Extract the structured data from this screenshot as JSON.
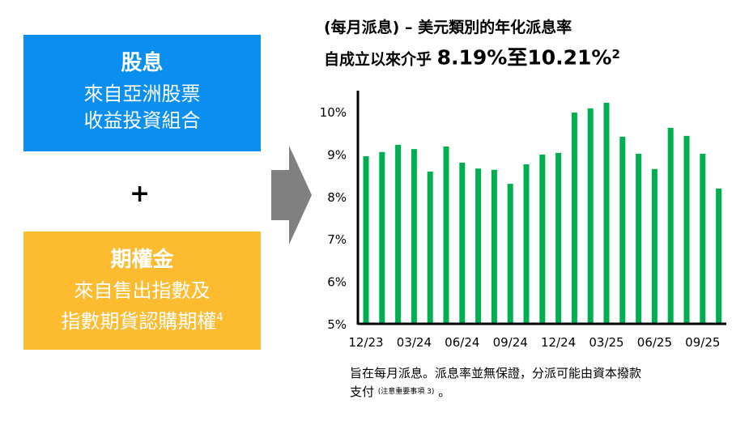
{
  "left": {
    "dividend_box": {
      "title": "股息",
      "subtitle_lines": [
        "來自亞洲股票",
        "收益投資組合"
      ],
      "color": "#0a8ff0"
    },
    "plus": "+",
    "premium_box": {
      "title": "期權金",
      "subtitle_lines": [
        "來自售出指數及",
        "指數期貨認購期權"
      ],
      "superscript": "4",
      "color": "#fdbb30"
    }
  },
  "chart_data": {
    "type": "bar",
    "title_line1": "(每月派息) – 美元類別的年化派息率",
    "title_line2_prefix": "自成立以來介乎 ",
    "title_line2_range": "8.19%至10.21%",
    "title_superscript": "2",
    "ylim": [
      5,
      10.5
    ],
    "yticks": [
      "5%",
      "6%",
      "7%",
      "8%",
      "9%",
      "10%"
    ],
    "ytick_values": [
      5,
      6,
      7,
      8,
      9,
      10
    ],
    "xtick_labels": [
      "12/23",
      "03/24",
      "06/24",
      "09/24",
      "12/24",
      "03/25",
      "06/25",
      "09/25"
    ],
    "xtick_indices": [
      0,
      3,
      6,
      9,
      12,
      15,
      18,
      21
    ],
    "categories": [
      "12/23",
      "01/24",
      "02/24",
      "03/24",
      "04/24",
      "05/24",
      "06/24",
      "07/24",
      "08/24",
      "09/24",
      "10/24",
      "11/24",
      "12/24",
      "01/25",
      "02/25",
      "03/25",
      "04/25",
      "05/25",
      "06/25",
      "07/25",
      "08/25",
      "09/25",
      "10/25"
    ],
    "values": [
      8.95,
      9.05,
      9.22,
      9.12,
      8.59,
      9.18,
      8.8,
      8.66,
      8.63,
      8.3,
      8.76,
      8.99,
      9.03,
      9.98,
      10.08,
      10.21,
      9.41,
      9.01,
      8.65,
      9.62,
      9.43,
      9.01,
      8.19
    ],
    "bar_color": "#00b050",
    "grid": false
  },
  "footnote": {
    "main": "旨在每月派息。派息率並無保證，分派可能由資本撥款",
    "line2": "支付",
    "note": "(注意重要事項 3)",
    "end": " 。"
  }
}
